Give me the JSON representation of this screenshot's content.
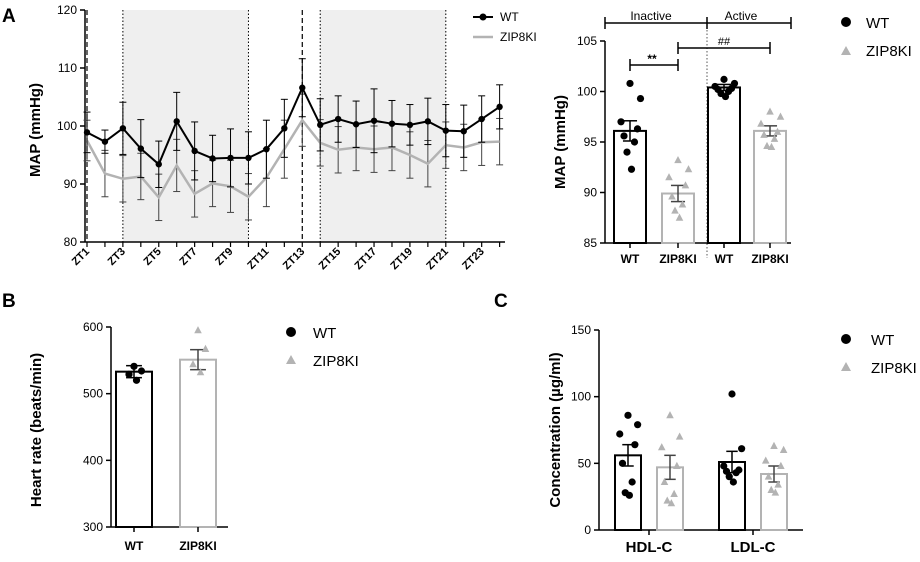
{
  "colors": {
    "wt": "#000000",
    "ko": "#b3b3b3",
    "shade": "#efefef",
    "axis": "#000000"
  },
  "chart_data": [
    {
      "id": "panel_a_left",
      "type": "line",
      "panel_label": "A",
      "ylabel": "MAP (mmHg)",
      "ylim": [
        80,
        120
      ],
      "yticks": [
        "80",
        "90",
        "100",
        "110",
        "120"
      ],
      "xticks": [
        "ZT1",
        "ZT3",
        "ZT5",
        "ZT7",
        "ZT9",
        "ZT11",
        "ZT13",
        "ZT15",
        "ZT17",
        "ZT19",
        "ZT21",
        "ZT23"
      ],
      "x": [
        1,
        2,
        3,
        4,
        5,
        6,
        7,
        8,
        9,
        10,
        11,
        12,
        13,
        14,
        15,
        16,
        17,
        18,
        19,
        20,
        21,
        22,
        23,
        24
      ],
      "series": [
        {
          "name": "WT",
          "values": [
            98.9,
            97.3,
            99.6,
            96.1,
            93.4,
            100.8,
            95.7,
            94.4,
            94.5,
            94.5,
            96.0,
            99.6,
            106.6,
            100.2,
            101.2,
            100.3,
            100.9,
            100.4,
            100.2,
            100.8,
            99.2,
            99.1,
            101.2,
            103.3
          ],
          "errors": [
            3.5,
            2.0,
            4.5,
            5.0,
            4.0,
            5.0,
            5.0,
            4.0,
            5.0,
            4.5,
            5.0,
            5.0,
            5.0,
            4.5,
            4.0,
            4.0,
            5.5,
            4.0,
            3.5,
            4.0,
            4.5,
            4.5,
            4.0,
            3.8
          ]
        },
        {
          "name": "ZIP8KI",
          "values": [
            97.5,
            91.8,
            90.9,
            91.3,
            87.7,
            93.2,
            88.3,
            90.1,
            89.6,
            87.8,
            91.1,
            96.0,
            101.0,
            97.1,
            95.9,
            96.3,
            96.0,
            96.3,
            95.0,
            93.5,
            96.7,
            96.3,
            97.2,
            97.3
          ],
          "errors": [
            3.5,
            4.0,
            4.0,
            4.0,
            4.0,
            4.5,
            4.0,
            4.0,
            4.5,
            4.0,
            5.0,
            5.0,
            4.5,
            4.0,
            4.0,
            4.0,
            4.0,
            4.0,
            4.0,
            4.0,
            4.0,
            4.0,
            4.0,
            4.0
          ]
        }
      ],
      "shaded_regions": [
        [
          3,
          10
        ],
        [
          14,
          21
        ]
      ],
      "dashed_lines": [
        1,
        13
      ],
      "dotted_lines": [
        3,
        10,
        14,
        21
      ],
      "legend": [
        "WT",
        "ZIP8KI"
      ]
    },
    {
      "id": "panel_a_right",
      "type": "bar",
      "ylabel": "MAP (mmHg)",
      "ylim": [
        85,
        105
      ],
      "yticks": [
        "85",
        "90",
        "95",
        "100",
        "105"
      ],
      "categories": [
        "WT",
        "ZIP8KI",
        "WT",
        "ZIP8KI"
      ],
      "groups": [
        "Inactive",
        "Active"
      ],
      "values": [
        96.1,
        89.9,
        100.4,
        96.1
      ],
      "sem": [
        1.0,
        0.8,
        0.3,
        0.5
      ],
      "points": [
        [
          100.8,
          99.3,
          97.0,
          96.3,
          95.6,
          95.0,
          94.0,
          92.3
        ],
        [
          93.2,
          92.3,
          91.5,
          90.7,
          89.6,
          88.8,
          88.2,
          87.5
        ],
        [
          101.2,
          100.8,
          100.5,
          100.3,
          100.2,
          100.0,
          99.8,
          99.5
        ],
        [
          98.0,
          97.5,
          96.8,
          96.0,
          95.7,
          95.3,
          94.6,
          94.5
        ]
      ],
      "annotations": [
        "**",
        "##"
      ],
      "legend": [
        "WT",
        "ZIP8KI"
      ]
    },
    {
      "id": "panel_b",
      "type": "bar",
      "panel_label": "B",
      "ylabel": "Heart rate (beats/min)",
      "ylim": [
        300,
        600
      ],
      "yticks": [
        "300",
        "400",
        "500",
        "600"
      ],
      "categories": [
        "WT",
        "ZIP8KI"
      ],
      "values": [
        533,
        551
      ],
      "sem": [
        9,
        15
      ],
      "points": [
        [
          541,
          534,
          529,
          520
        ],
        [
          595,
          567,
          544,
          532
        ]
      ],
      "legend": [
        "WT",
        "ZIP8KI"
      ]
    },
    {
      "id": "panel_c",
      "type": "bar",
      "panel_label": "C",
      "ylabel": "Concentration (µg/ml)",
      "ylim": [
        0,
        150
      ],
      "yticks": [
        "0",
        "50",
        "100",
        "150"
      ],
      "categories": [
        "HDL-C",
        "LDL-C"
      ],
      "series": [
        {
          "name": "WT",
          "values": [
            56,
            51
          ],
          "sem": [
            8,
            8
          ],
          "points": [
            [
              86,
              79,
              72,
              64,
              50,
              36,
              28,
              26
            ],
            [
              102,
              61,
              48,
              45,
              44,
              43,
              40,
              36
            ]
          ]
        },
        {
          "name": "ZIP8KI",
          "values": [
            47,
            42
          ],
          "sem": [
            9,
            6
          ],
          "points": [
            [
              86,
              70,
              62,
              48,
              36,
              27,
              22,
              20
            ],
            [
              63,
              60,
              52,
              48,
              40,
              34,
              30,
              28
            ]
          ]
        }
      ],
      "legend": [
        "WT",
        "ZIP8KI"
      ]
    }
  ]
}
